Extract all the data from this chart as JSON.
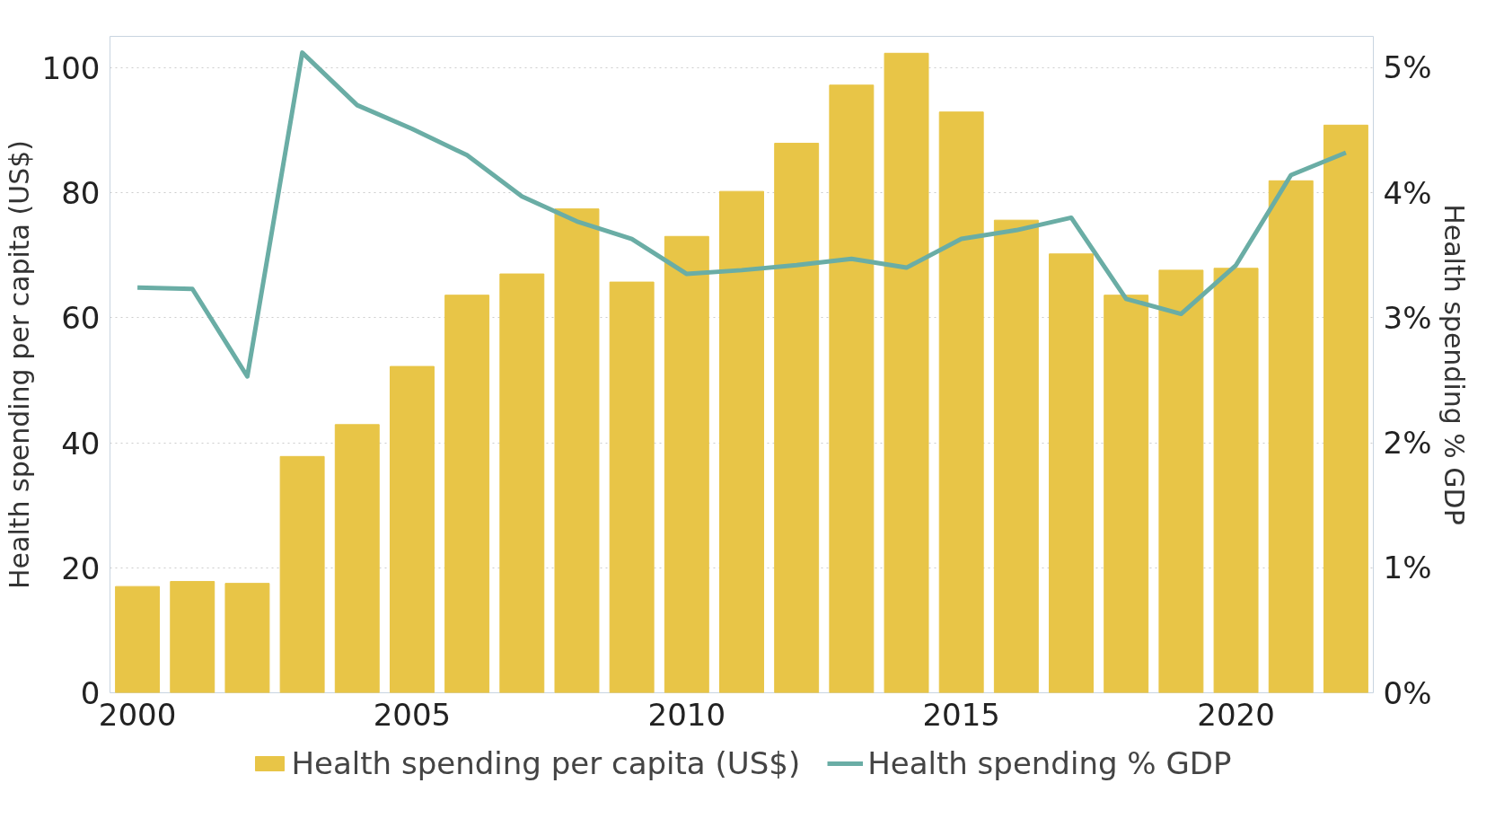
{
  "chart_data": {
    "type": "bar",
    "ylabel": "Health spending per capita (US$)",
    "y2label": "Health spending % GDP",
    "x": [
      2000,
      2001,
      2002,
      2003,
      2004,
      2005,
      2006,
      2007,
      2008,
      2009,
      2010,
      2011,
      2012,
      2013,
      2014,
      2015,
      2016,
      2017,
      2018,
      2019,
      2020,
      2021,
      2022
    ],
    "xlim": [
      1999.5,
      2022.5
    ],
    "xticks": [
      2000,
      2005,
      2010,
      2015,
      2020
    ],
    "ylim": [
      0,
      105
    ],
    "yticks": [
      0,
      20,
      40,
      60,
      80,
      100
    ],
    "y2lim": [
      0,
      5.25
    ],
    "y2ticks": [
      {
        "value": 0,
        "label": "0%"
      },
      {
        "value": 1,
        "label": "1%"
      },
      {
        "value": 2,
        "label": "2%"
      },
      {
        "value": 3,
        "label": "3%"
      },
      {
        "value": 4,
        "label": "4%"
      },
      {
        "value": 5,
        "label": "5%"
      }
    ],
    "series": [
      {
        "name": "Health spending per capita (US$)",
        "color": "#e8c547",
        "values": [
          17,
          17.8,
          17.5,
          37.8,
          42.9,
          52.2,
          63.6,
          67,
          77.4,
          65.7,
          73,
          80.2,
          87.9,
          97.2,
          102.3,
          92.9,
          75.6,
          70.2,
          63.6,
          67.6,
          67.9,
          81.9,
          90.8
        ]
      },
      {
        "name": "Health spending % GDP",
        "type": "line",
        "axis": "y2",
        "color": "#6aada5",
        "values": [
          3.24,
          3.23,
          2.53,
          5.12,
          4.7,
          4.51,
          4.3,
          3.97,
          3.77,
          3.63,
          3.35,
          3.38,
          3.42,
          3.47,
          3.4,
          3.63,
          3.7,
          3.8,
          3.15,
          3.03,
          3.42,
          4.14,
          4.32
        ]
      }
    ],
    "grid": "y",
    "legend": "bottom",
    "line_style": "solid",
    "marker": "none"
  }
}
